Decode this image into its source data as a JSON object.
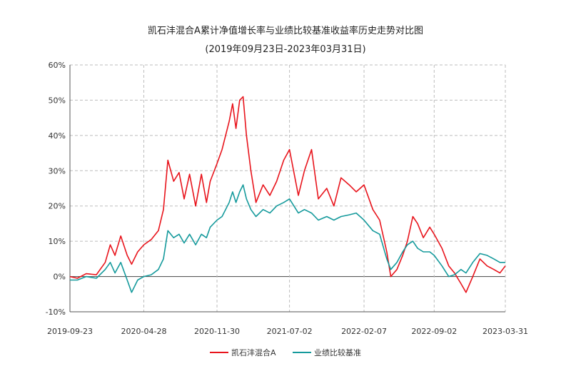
{
  "chart_data": {
    "type": "line",
    "title": "凯石沣混合A累计净值增长率与业绩比较基准收益率历史走势对比图",
    "subtitle": "(2019年09月23日-2023年03月31日)",
    "ylim": [
      -10,
      60
    ],
    "yticks": [
      -10,
      0,
      10,
      20,
      30,
      40,
      50,
      60
    ],
    "ytick_labels": [
      "-10%",
      "0%",
      "10%",
      "20%",
      "30%",
      "40%",
      "50%",
      "60%"
    ],
    "xlim": [
      "2019-09-23",
      "2023-03-31"
    ],
    "xticks": [
      "2019-09-23",
      "2020-04-28",
      "2020-11-30",
      "2021-07-02",
      "2022-02-07",
      "2022-09-02",
      "2023-03-31"
    ],
    "grid": true,
    "legend_position": "bottom",
    "series": [
      {
        "name": "凯石沣混合A",
        "color": "#e8141c",
        "points": [
          [
            "2019-09-23",
            0
          ],
          [
            "2019-10-15",
            -0.5
          ],
          [
            "2019-11-10",
            0.8
          ],
          [
            "2019-12-10",
            0.5
          ],
          [
            "2020-01-05",
            4
          ],
          [
            "2020-01-20",
            9
          ],
          [
            "2020-02-03",
            6
          ],
          [
            "2020-02-20",
            11.5
          ],
          [
            "2020-03-10",
            6
          ],
          [
            "2020-03-23",
            3.5
          ],
          [
            "2020-04-10",
            7
          ],
          [
            "2020-04-28",
            9
          ],
          [
            "2020-05-20",
            10.5
          ],
          [
            "2020-06-10",
            13
          ],
          [
            "2020-06-25",
            19
          ],
          [
            "2020-07-08",
            33
          ],
          [
            "2020-07-25",
            27
          ],
          [
            "2020-08-10",
            29.5
          ],
          [
            "2020-08-25",
            22
          ],
          [
            "2020-09-10",
            29
          ],
          [
            "2020-09-28",
            20
          ],
          [
            "2020-10-15",
            29
          ],
          [
            "2020-10-30",
            21
          ],
          [
            "2020-11-10",
            27
          ],
          [
            "2020-11-30",
            32
          ],
          [
            "2020-12-15",
            36
          ],
          [
            "2021-01-05",
            44
          ],
          [
            "2021-01-15",
            49
          ],
          [
            "2021-01-25",
            42
          ],
          [
            "2021-02-05",
            50
          ],
          [
            "2021-02-15",
            51
          ],
          [
            "2021-02-25",
            40
          ],
          [
            "2021-03-10",
            30
          ],
          [
            "2021-03-25",
            21
          ],
          [
            "2021-04-15",
            26
          ],
          [
            "2021-05-05",
            23
          ],
          [
            "2021-05-25",
            27
          ],
          [
            "2021-06-15",
            33
          ],
          [
            "2021-07-02",
            36
          ],
          [
            "2021-07-28",
            23
          ],
          [
            "2021-08-15",
            30
          ],
          [
            "2021-09-05",
            36
          ],
          [
            "2021-09-25",
            22
          ],
          [
            "2021-10-20",
            25
          ],
          [
            "2021-11-10",
            20
          ],
          [
            "2021-12-01",
            28
          ],
          [
            "2021-12-25",
            26
          ],
          [
            "2022-01-15",
            24
          ],
          [
            "2022-02-07",
            26
          ],
          [
            "2022-03-05",
            19
          ],
          [
            "2022-03-25",
            16
          ],
          [
            "2022-04-15",
            7
          ],
          [
            "2022-04-27",
            0
          ],
          [
            "2022-05-15",
            2
          ],
          [
            "2022-06-01",
            6
          ],
          [
            "2022-06-15",
            10
          ],
          [
            "2022-07-01",
            17
          ],
          [
            "2022-07-15",
            15
          ],
          [
            "2022-08-01",
            11
          ],
          [
            "2022-08-20",
            14
          ],
          [
            "2022-09-02",
            12
          ],
          [
            "2022-09-25",
            8
          ],
          [
            "2022-10-15",
            3
          ],
          [
            "2022-11-01",
            1
          ],
          [
            "2022-11-20",
            -2
          ],
          [
            "2022-12-05",
            -4.5
          ],
          [
            "2022-12-25",
            0
          ],
          [
            "2023-01-15",
            5
          ],
          [
            "2023-02-05",
            3
          ],
          [
            "2023-02-25",
            2
          ],
          [
            "2023-03-15",
            1
          ],
          [
            "2023-03-31",
            3
          ]
        ]
      },
      {
        "name": "业绩比较基准",
        "color": "#159a9c",
        "points": [
          [
            "2019-09-23",
            -1
          ],
          [
            "2019-10-15",
            -1
          ],
          [
            "2019-11-10",
            0
          ],
          [
            "2019-12-10",
            -0.5
          ],
          [
            "2020-01-05",
            2
          ],
          [
            "2020-01-20",
            4
          ],
          [
            "2020-02-03",
            1
          ],
          [
            "2020-02-20",
            4
          ],
          [
            "2020-03-10",
            -1
          ],
          [
            "2020-03-23",
            -4.5
          ],
          [
            "2020-04-10",
            -1
          ],
          [
            "2020-04-28",
            0
          ],
          [
            "2020-05-20",
            0.5
          ],
          [
            "2020-06-10",
            2
          ],
          [
            "2020-06-25",
            5
          ],
          [
            "2020-07-08",
            13
          ],
          [
            "2020-07-25",
            11
          ],
          [
            "2020-08-10",
            12
          ],
          [
            "2020-08-25",
            9.5
          ],
          [
            "2020-09-10",
            12
          ],
          [
            "2020-09-28",
            9
          ],
          [
            "2020-10-15",
            12
          ],
          [
            "2020-10-30",
            11
          ],
          [
            "2020-11-10",
            14
          ],
          [
            "2020-11-30",
            16
          ],
          [
            "2020-12-15",
            17
          ],
          [
            "2021-01-05",
            21
          ],
          [
            "2021-01-15",
            24
          ],
          [
            "2021-01-25",
            21
          ],
          [
            "2021-02-05",
            24
          ],
          [
            "2021-02-15",
            26
          ],
          [
            "2021-02-25",
            22
          ],
          [
            "2021-03-10",
            19
          ],
          [
            "2021-03-25",
            17
          ],
          [
            "2021-04-15",
            19
          ],
          [
            "2021-05-05",
            18
          ],
          [
            "2021-05-25",
            20
          ],
          [
            "2021-06-15",
            21
          ],
          [
            "2021-07-02",
            22
          ],
          [
            "2021-07-28",
            18
          ],
          [
            "2021-08-15",
            19
          ],
          [
            "2021-09-05",
            18
          ],
          [
            "2021-09-25",
            16
          ],
          [
            "2021-10-20",
            17
          ],
          [
            "2021-11-10",
            16
          ],
          [
            "2021-12-01",
            17
          ],
          [
            "2021-12-25",
            17.5
          ],
          [
            "2022-01-15",
            18
          ],
          [
            "2022-02-07",
            16
          ],
          [
            "2022-03-05",
            13
          ],
          [
            "2022-03-25",
            12
          ],
          [
            "2022-04-15",
            5
          ],
          [
            "2022-04-27",
            2
          ],
          [
            "2022-05-15",
            4
          ],
          [
            "2022-06-01",
            7
          ],
          [
            "2022-06-15",
            9
          ],
          [
            "2022-07-01",
            10
          ],
          [
            "2022-07-15",
            8
          ],
          [
            "2022-08-01",
            7
          ],
          [
            "2022-08-20",
            7
          ],
          [
            "2022-09-02",
            6
          ],
          [
            "2022-09-25",
            3
          ],
          [
            "2022-10-15",
            0
          ],
          [
            "2022-11-01",
            0.5
          ],
          [
            "2022-11-20",
            2
          ],
          [
            "2022-12-05",
            1
          ],
          [
            "2022-12-25",
            4
          ],
          [
            "2023-01-15",
            6.5
          ],
          [
            "2023-02-05",
            6
          ],
          [
            "2023-02-25",
            5
          ],
          [
            "2023-03-15",
            4
          ],
          [
            "2023-03-31",
            4
          ]
        ]
      }
    ]
  }
}
